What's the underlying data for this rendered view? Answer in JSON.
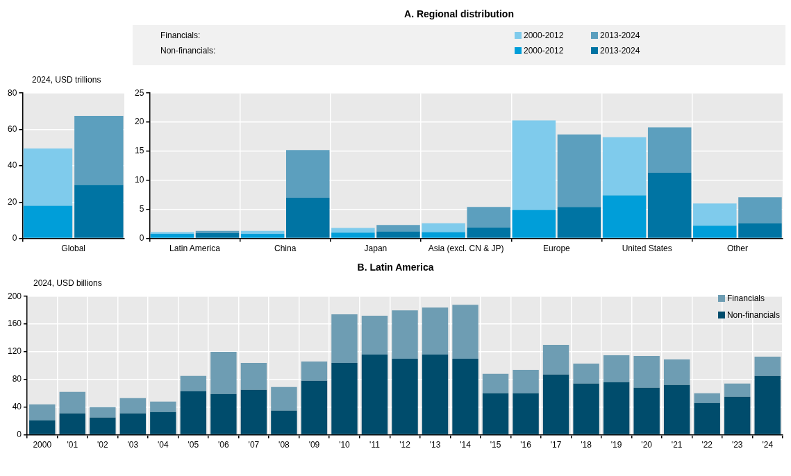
{
  "chart_data": [
    {
      "type": "bar",
      "ylabel": "2024, USD trillions",
      "categories": [
        "Global",
        null
      ],
      "stacked": true,
      "grid": "y",
      "ylim": [
        0,
        80
      ],
      "yticks": [
        0,
        20,
        40,
        60,
        80
      ],
      "series": [
        {
          "color": "#009ed9",
          "values": [
            18,
            null
          ]
        },
        {
          "color": "#7fcbec",
          "values": [
            31.5,
            null
          ]
        },
        {
          "color": "#0074a3",
          "values": [
            null,
            29.5
          ]
        },
        {
          "color": "#5c9fbe",
          "values": [
            null,
            38
          ]
        }
      ]
    },
    {
      "type": "bar",
      "title": "A. Regional distribution",
      "categories": [
        "Latin America",
        null,
        "China",
        null,
        "Japan",
        null,
        "Asia (excl. CN & JP)",
        null,
        "Europe",
        null,
        "United States",
        null,
        "Other",
        null
      ],
      "stacked": true,
      "grid": true,
      "legend": "top",
      "annotations": [
        "Financials:",
        "Non-financials:"
      ],
      "ylim": [
        0,
        25
      ],
      "yticks": [
        0,
        5,
        10,
        15,
        20,
        25
      ],
      "series": [
        {
          "name": "2000-2012",
          "color": "#009ed9",
          "values": [
            0.8,
            null,
            0.8,
            null,
            1.0,
            null,
            1.1,
            null,
            4.9,
            null,
            7.4,
            null,
            2.2,
            null
          ]
        },
        {
          "name": "2000-2012",
          "color": "#7fcbec",
          "values": [
            0.3,
            null,
            0.5,
            null,
            0.8,
            null,
            1.5,
            null,
            15.4,
            null,
            10.0,
            null,
            3.8,
            null
          ]
        },
        {
          "name": "2013-2024",
          "color": "#0074a3",
          "values": [
            null,
            0.9,
            null,
            7.0,
            null,
            1.2,
            null,
            1.9,
            null,
            5.4,
            null,
            11.3,
            null,
            2.6
          ]
        },
        {
          "name": "2013-2024",
          "color": "#5c9fbe",
          "values": [
            null,
            0.4,
            null,
            8.2,
            null,
            1.1,
            null,
            3.5,
            null,
            12.5,
            null,
            7.8,
            null,
            4.5
          ]
        }
      ]
    },
    {
      "type": "bar",
      "title": "B. Latin America",
      "ylabel": "2024, USD billions",
      "categories": [
        "2000",
        "'01",
        "'02",
        "'03",
        "'04",
        "'05",
        "'06",
        "'07",
        "'08",
        "'09",
        "'10",
        "'11",
        "'12",
        "'13",
        "'14",
        "'15",
        "'16",
        "'17",
        "'18",
        "'19",
        "'20",
        "'21",
        "'22",
        "'23",
        "'24"
      ],
      "stacked": true,
      "grid": true,
      "legend": "top right",
      "ylim": [
        0,
        200
      ],
      "yticks": [
        0,
        40,
        80,
        120,
        160,
        200
      ],
      "series": [
        {
          "name": "Non-financials",
          "color": "#004c6c",
          "values": [
            21,
            31,
            25,
            31,
            33,
            63,
            59,
            65,
            35,
            78,
            104,
            116,
            110,
            116,
            110,
            60,
            60,
            87,
            74,
            76,
            68,
            72,
            46,
            55,
            85
          ]
        },
        {
          "name": "Financials",
          "color": "#6e9db3",
          "values": [
            23,
            31,
            15,
            22,
            15,
            22,
            61,
            39,
            34,
            28,
            70,
            56,
            70,
            68,
            78,
            28,
            34,
            43,
            29,
            39,
            46,
            37,
            14,
            19,
            28
          ]
        }
      ]
    }
  ]
}
